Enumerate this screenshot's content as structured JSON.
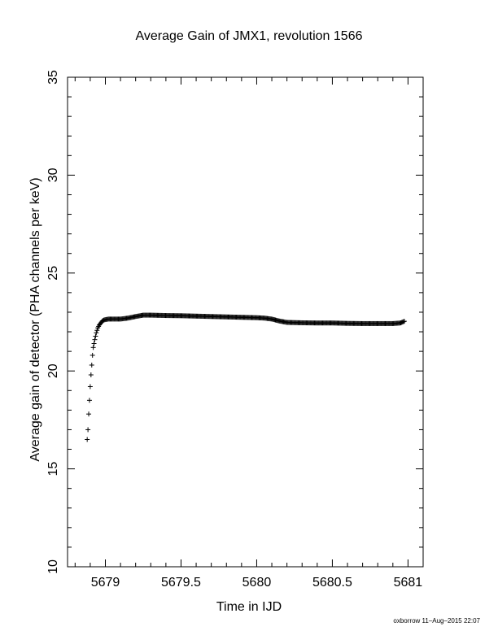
{
  "chart_data": {
    "type": "scatter",
    "title": "Average Gain of JMX1, revolution 1566",
    "xlabel": "Time in IJD",
    "ylabel": "Average gain of detector (PHA channels per keV)",
    "xlim": [
      5678.75,
      5681.1
    ],
    "ylim": [
      10,
      35
    ],
    "xticks": [
      5679,
      5679.5,
      5680,
      5680.5,
      5681
    ],
    "xtick_labels": [
      "5679",
      "5679.5",
      "5680",
      "5680.5",
      "5681"
    ],
    "yticks": [
      10,
      15,
      20,
      25,
      30,
      35
    ],
    "ytick_labels": [
      "10",
      "15",
      "20",
      "25",
      "30",
      "35"
    ],
    "grid": false,
    "marker": "+",
    "series_color": "#000000",
    "series": [
      {
        "x": [
          5678.88,
          5678.885,
          5678.89,
          5678.895,
          5678.9,
          5678.905,
          5678.91,
          5678.915,
          5678.92,
          5678.93,
          5678.94,
          5678.95,
          5678.96,
          5678.97,
          5678.98,
          5678.99,
          5679.0,
          5679.02,
          5679.05,
          5679.1,
          5679.15,
          5679.2,
          5679.25,
          5679.3,
          5679.4,
          5679.5,
          5679.6,
          5679.7,
          5679.8,
          5679.9,
          5680.0,
          5680.05,
          5680.1,
          5680.15,
          5680.2,
          5680.3,
          5680.4,
          5680.5,
          5680.6,
          5680.7,
          5680.8,
          5680.9,
          5680.95,
          5680.98
        ],
        "y": [
          16.5,
          17.0,
          17.8,
          18.5,
          19.2,
          19.8,
          20.3,
          20.8,
          21.2,
          21.6,
          21.95,
          22.2,
          22.35,
          22.45,
          22.55,
          22.6,
          22.62,
          22.65,
          22.65,
          22.65,
          22.7,
          22.78,
          22.85,
          22.85,
          22.83,
          22.82,
          22.8,
          22.78,
          22.76,
          22.74,
          22.72,
          22.7,
          22.65,
          22.55,
          22.48,
          22.46,
          22.45,
          22.45,
          22.43,
          22.42,
          22.42,
          22.42,
          22.45,
          22.55
        ]
      }
    ]
  },
  "footer": {
    "credit": "oxborrow 11–Aug–2015 22:07"
  }
}
